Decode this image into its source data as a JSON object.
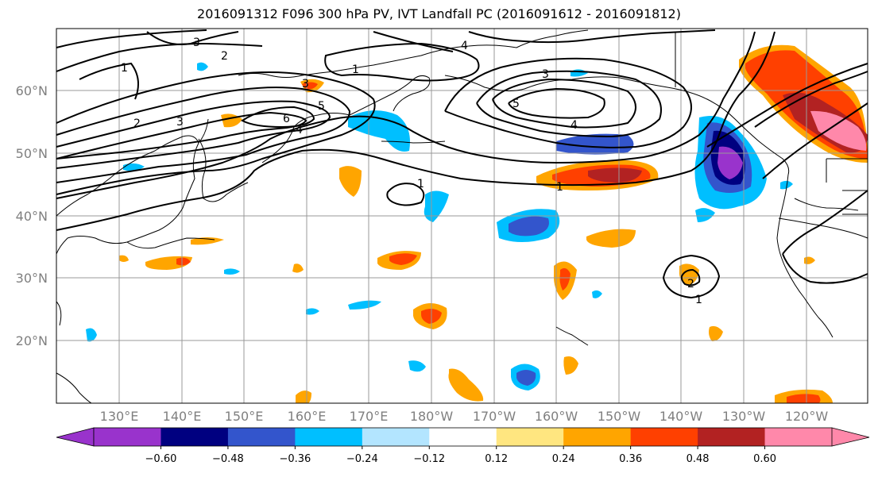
{
  "title": "2016091312 F096 300 hPa PV, IVT Landfall PC (2016091612 - 2016091812)",
  "map": {
    "lat_ticks": [
      "60°N",
      "50°N",
      "40°N",
      "30°N",
      "20°N"
    ],
    "lon_ticks": [
      "130°E",
      "140°E",
      "150°E",
      "160°E",
      "170°E",
      "180°W",
      "170°W",
      "160°W",
      "150°W",
      "140°W",
      "130°W",
      "120°W"
    ],
    "contour_labels": [
      "3",
      "2",
      "1",
      "2",
      "3",
      "6",
      "4",
      "5",
      "3",
      "1",
      "5",
      "3",
      "4",
      "1",
      "1",
      "2",
      "1",
      "4"
    ]
  },
  "colorbar": {
    "ticks": [
      "−0.60",
      "−0.48",
      "−0.36",
      "−0.24",
      "−0.12",
      "0.12",
      "0.24",
      "0.36",
      "0.48",
      "0.60"
    ],
    "colors": [
      "#9933cc",
      "#000080",
      "#3355cc",
      "#00bfff",
      "#b3e5ff",
      "#ffffff",
      "#ffe680",
      "#ffa500",
      "#ff4000",
      "#b22222",
      "#ff88aa"
    ],
    "under_color": "#9933cc",
    "over_color": "#ff88aa"
  }
}
